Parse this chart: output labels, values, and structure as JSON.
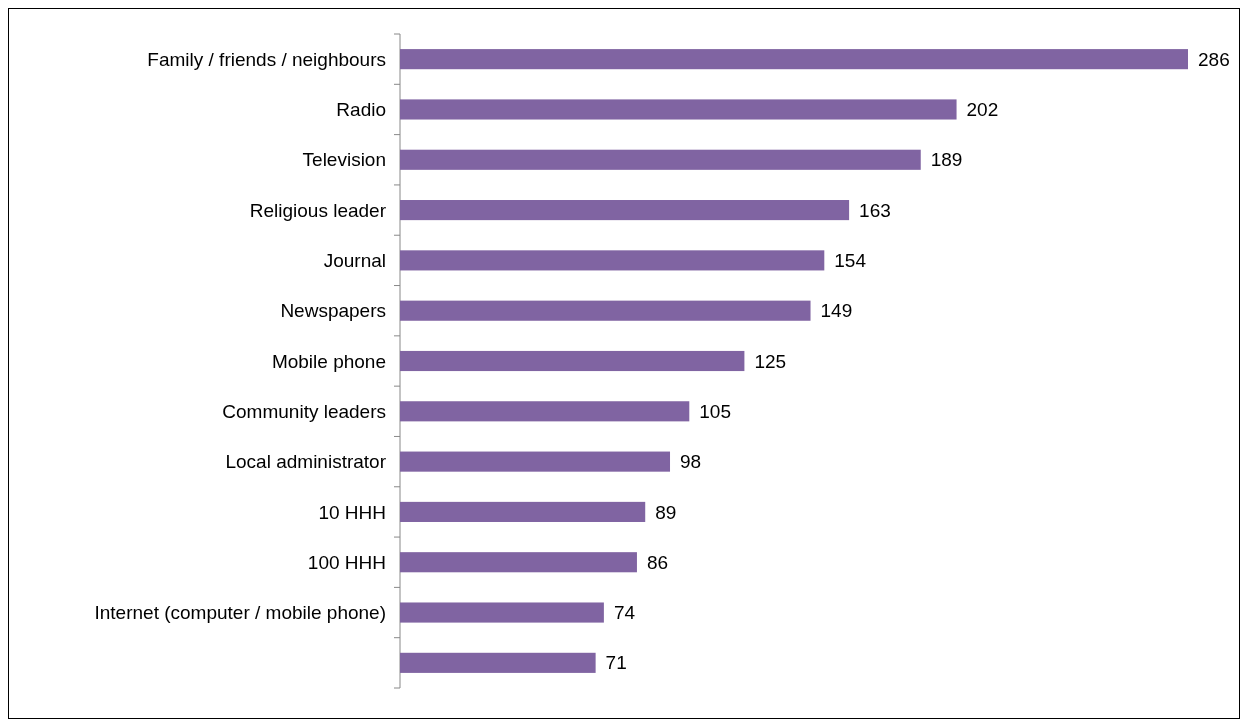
{
  "chart_data": {
    "type": "bar",
    "orientation": "horizontal",
    "categories": [
      "Family / friends / neighbours",
      "Radio",
      "Television",
      "Religious leader",
      "Journal",
      "Newspapers",
      "Mobile phone",
      "Community leaders",
      "Local administrator",
      "10 HHH",
      "100 HHH",
      "Internet (computer / mobile phone)",
      null
    ],
    "values": [
      286,
      202,
      189,
      163,
      154,
      149,
      125,
      105,
      98,
      89,
      86,
      74,
      71
    ],
    "color": "#8064a2",
    "data_labels": true
  }
}
